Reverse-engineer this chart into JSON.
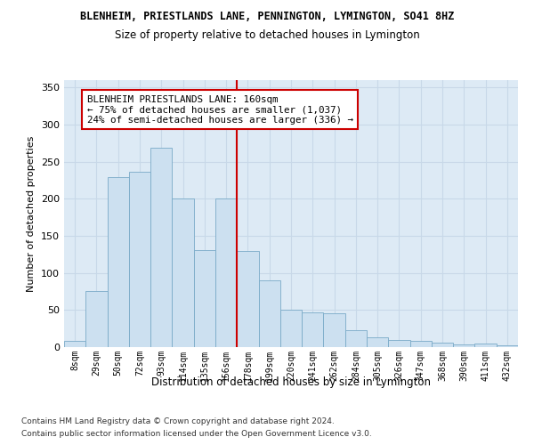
{
  "title": "BLENHEIM, PRIESTLANDS LANE, PENNINGTON, LYMINGTON, SO41 8HZ",
  "subtitle": "Size of property relative to detached houses in Lymington",
  "xlabel": "Distribution of detached houses by size in Lymington",
  "ylabel": "Number of detached properties",
  "bar_color": "#cce0f0",
  "bar_edge_color": "#7aaac8",
  "categories": [
    "8sqm",
    "29sqm",
    "50sqm",
    "72sqm",
    "93sqm",
    "114sqm",
    "135sqm",
    "156sqm",
    "178sqm",
    "199sqm",
    "220sqm",
    "241sqm",
    "262sqm",
    "284sqm",
    "305sqm",
    "326sqm",
    "347sqm",
    "368sqm",
    "390sqm",
    "411sqm",
    "432sqm"
  ],
  "values": [
    8,
    76,
    229,
    236,
    269,
    201,
    131,
    200,
    130,
    90,
    50,
    47,
    46,
    23,
    13,
    10,
    9,
    6,
    4,
    5,
    2
  ],
  "vline_x": 7.5,
  "vline_color": "#cc0000",
  "annotation_text": "BLENHEIM PRIESTLANDS LANE: 160sqm\n← 75% of detached houses are smaller (1,037)\n24% of semi-detached houses are larger (336) →",
  "ylim": [
    0,
    360
  ],
  "yticks": [
    0,
    50,
    100,
    150,
    200,
    250,
    300,
    350
  ],
  "grid_color": "#c8d8e8",
  "bg_color": "#ddeaf5",
  "footer1": "Contains HM Land Registry data © Crown copyright and database right 2024.",
  "footer2": "Contains public sector information licensed under the Open Government Licence v3.0."
}
